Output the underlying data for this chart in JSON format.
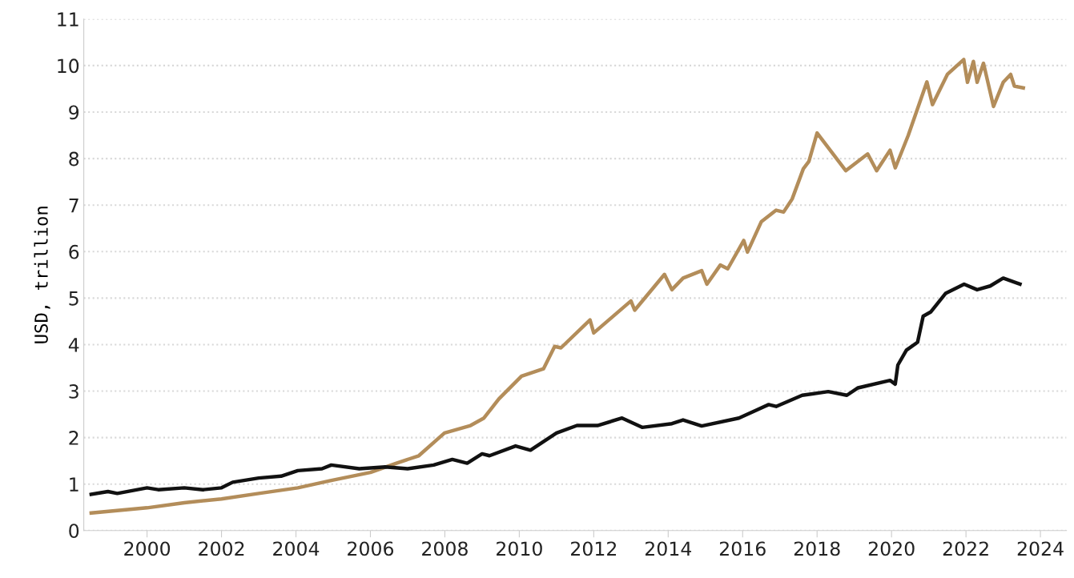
{
  "chart_data": {
    "type": "line",
    "ylabel": "USD, trillion",
    "xlim": [
      1998.3,
      2024.7
    ],
    "ylim": [
      0,
      11
    ],
    "xticks": [
      2000,
      2002,
      2004,
      2006,
      2008,
      2010,
      2012,
      2014,
      2016,
      2018,
      2020,
      2022,
      2024
    ],
    "yticks": [
      0,
      1,
      2,
      3,
      4,
      5,
      6,
      7,
      8,
      9,
      10,
      11
    ],
    "grid": "y",
    "legend": false,
    "marker": "none",
    "line_style": "solid",
    "series": [
      {
        "color": "#b38d5a",
        "x": [
          1998.5,
          2000.0,
          2001.0,
          2002.0,
          2003.0,
          2004.05,
          2004.95,
          2006.0,
          2006.7,
          2007.3,
          2007.99,
          2008.69,
          2009.05,
          2009.45,
          2010.06,
          2010.65,
          2010.95,
          2011.12,
          2011.9,
          2012.0,
          2013.0,
          2013.1,
          2013.9,
          2014.1,
          2014.4,
          2014.9,
          2015.04,
          2015.4,
          2015.6,
          2016.03,
          2016.13,
          2016.5,
          2016.9,
          2017.1,
          2017.33,
          2017.63,
          2017.78,
          2018.0,
          2018.77,
          2019.36,
          2019.6,
          2019.96,
          2020.1,
          2020.45,
          2020.95,
          2021.1,
          2021.5,
          2021.94,
          2022.04,
          2022.2,
          2022.3,
          2022.47,
          2022.74,
          2023.0,
          2023.2,
          2023.3,
          2023.54
        ],
        "values": [
          0.38,
          0.49,
          0.6,
          0.68,
          0.8,
          0.92,
          1.08,
          1.25,
          1.45,
          1.61,
          2.1,
          2.26,
          2.42,
          2.83,
          3.32,
          3.48,
          3.96,
          3.93,
          4.53,
          4.25,
          4.94,
          4.74,
          5.51,
          5.18,
          5.43,
          5.59,
          5.3,
          5.71,
          5.63,
          6.24,
          5.99,
          6.64,
          6.89,
          6.85,
          7.13,
          7.78,
          7.94,
          8.55,
          7.74,
          8.1,
          7.74,
          8.18,
          7.8,
          8.5,
          9.65,
          9.16,
          9.81,
          10.13,
          9.64,
          10.09,
          9.64,
          10.05,
          9.12,
          9.64,
          9.81,
          9.56,
          9.52
        ]
      },
      {
        "color": "#111111",
        "x": [
          1998.5,
          1998.95,
          1999.2,
          2000.0,
          2000.3,
          2001.0,
          2001.5,
          2002.0,
          2002.3,
          2003.0,
          2003.6,
          2004.05,
          2004.7,
          2004.95,
          2005.7,
          2006.4,
          2007.0,
          2007.7,
          2008.2,
          2008.6,
          2009.0,
          2009.2,
          2009.9,
          2010.3,
          2011.0,
          2011.55,
          2012.1,
          2012.76,
          2013.3,
          2014.1,
          2014.4,
          2014.9,
          2015.9,
          2016.7,
          2016.9,
          2017.6,
          2018.3,
          2018.8,
          2019.1,
          2019.96,
          2020.1,
          2020.17,
          2020.4,
          2020.7,
          2020.85,
          2021.05,
          2021.45,
          2021.95,
          2022.3,
          2022.65,
          2023.0,
          2023.45
        ],
        "values": [
          0.78,
          0.84,
          0.8,
          0.92,
          0.88,
          0.92,
          0.88,
          0.92,
          1.04,
          1.13,
          1.17,
          1.29,
          1.33,
          1.41,
          1.33,
          1.37,
          1.33,
          1.41,
          1.53,
          1.45,
          1.65,
          1.61,
          1.82,
          1.73,
          2.1,
          2.26,
          2.26,
          2.42,
          2.22,
          2.3,
          2.38,
          2.25,
          2.42,
          2.71,
          2.67,
          2.91,
          2.99,
          2.91,
          3.07,
          3.23,
          3.15,
          3.56,
          3.88,
          4.05,
          4.61,
          4.7,
          5.1,
          5.3,
          5.18,
          5.26,
          5.43,
          5.3
        ]
      }
    ]
  }
}
